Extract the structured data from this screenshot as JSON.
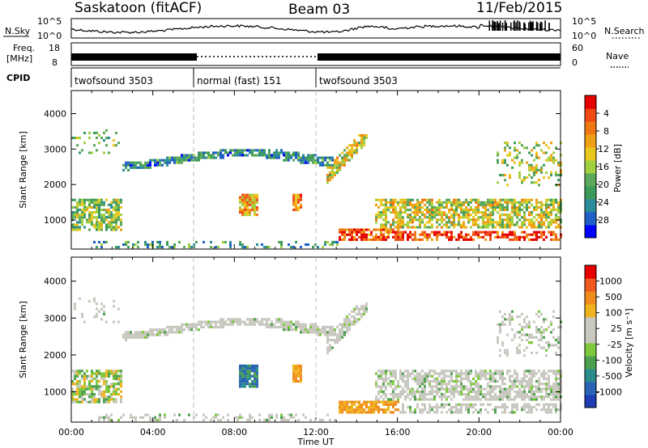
{
  "header": {
    "station": "Saskatoon (fitACF)",
    "beam": "Beam 03",
    "date": "11/Feb/2015"
  },
  "strip": {
    "nsky_label": "N.Sky",
    "nsearch_label": "N.Search",
    "nsky_top": "10^5",
    "nsky_bottom": "10^0",
    "freq_label_1": "Freq.",
    "freq_label_2": "[MHz]",
    "freq_top": "18",
    "freq_bottom": "8",
    "nave_label": "Nave",
    "nave_top": "60",
    "nave_bottom": "0",
    "cpid_label": "CPID",
    "cpid_segments": [
      {
        "name": "twofsound 3503",
        "start_h": 0,
        "end_h": 6
      },
      {
        "name": "normal (fast) 151",
        "start_h": 6,
        "end_h": 12
      },
      {
        "name": "twofsound 3503",
        "start_h": 12,
        "end_h": 24
      }
    ]
  },
  "chart_data": [
    {
      "type": "heatmap",
      "panel": "power",
      "ylabel": "Slant Range [km]",
      "xlabel": "Time UT",
      "y_ticks": [
        1000,
        2000,
        3000,
        4000
      ],
      "ylim": [
        180,
        4650
      ],
      "x_ticks": [
        "00:00",
        "04:00",
        "08:00",
        "12:00",
        "16:00",
        "20:00",
        "00:00"
      ],
      "xlim_hours": [
        0,
        24
      ],
      "colorbar": {
        "label": "Power [dB]",
        "ticks": [
          "4",
          "8",
          "12",
          "16",
          "20",
          "24",
          "28"
        ],
        "range": [
          0,
          30
        ],
        "colors": [
          "#0000ff",
          "#1e5fc8",
          "#2a8c9a",
          "#3c9a5a",
          "#5aa85a",
          "#a0d040",
          "#e8c81e",
          "#f0a014",
          "#f07814",
          "#f04a14",
          "#e60000"
        ]
      }
    },
    {
      "type": "heatmap",
      "panel": "velocity",
      "ylabel": "Slant Range [km]",
      "xlabel": "Time UT",
      "y_ticks": [
        1000,
        2000,
        3000,
        4000
      ],
      "ylim": [
        180,
        4650
      ],
      "x_ticks": [
        "00:00",
        "04:00",
        "08:00",
        "12:00",
        "16:00",
        "20:00",
        "00:00"
      ],
      "xlim_hours": [
        0,
        24
      ],
      "colorbar": {
        "label": "Velocity [m s^-1]",
        "ticks": [
          "1000",
          "500",
          "100",
          "25",
          "-25",
          "-100",
          "-500",
          "-1000"
        ],
        "colors": [
          "#1e3cb4",
          "#2a64b4",
          "#2a8c8c",
          "#4ea04e",
          "#7ec83c",
          "#c8c8c0",
          "#c8c8c0",
          "#f0b41e",
          "#f08c1e",
          "#f05a1e",
          "#e60000"
        ]
      }
    }
  ]
}
